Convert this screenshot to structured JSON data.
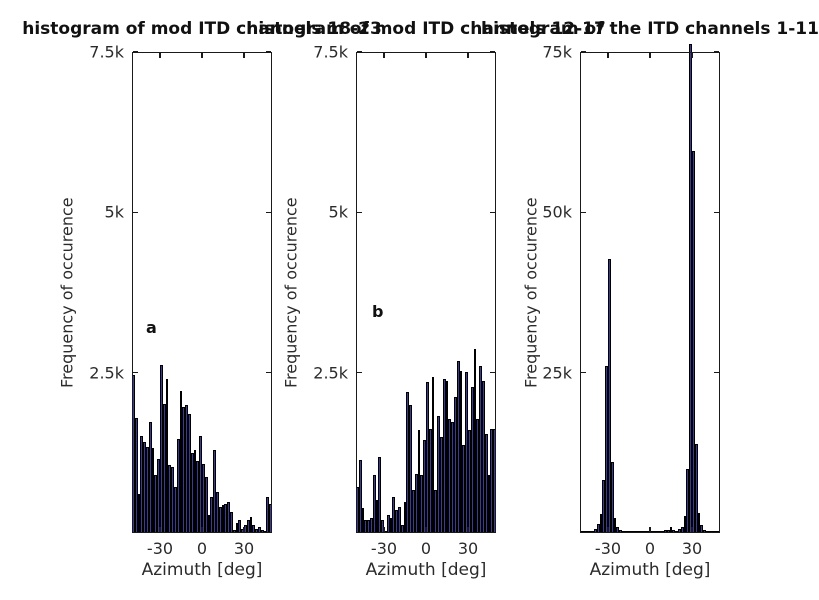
{
  "figure": {
    "background": "#ffffff",
    "bar_fill": "#3B3B8F",
    "bar_edge": "#000000",
    "axis_color": "#1a1a1a",
    "text_color": "#2b2b2b",
    "title_color": "#111111"
  },
  "chart_data": [
    {
      "type": "bar",
      "title": "histogram of mod ITD channels 18-23",
      "panel_label": "a",
      "xlabel": "Azimuth [deg]",
      "ylabel": "Frequency of occurence",
      "xlim": [
        -50,
        50
      ],
      "ylim": [
        0,
        7500
      ],
      "grid": false,
      "legend": "none",
      "xticks": [
        {
          "value": -30,
          "label": "-30"
        },
        {
          "value": 0,
          "label": "0"
        },
        {
          "value": 30,
          "label": "30"
        }
      ],
      "yticks": [
        {
          "value": 2500,
          "label": "2.5k"
        },
        {
          "value": 5000,
          "label": "5k"
        },
        {
          "value": 7500,
          "label": "7.5k"
        }
      ],
      "bin_width": 2,
      "bin_start": -50,
      "values": [
        2470,
        1795,
        615,
        1520,
        1420,
        1340,
        1730,
        1330,
        900,
        1160,
        2615,
        2010,
        2400,
        1055,
        1030,
        720,
        1470,
        2220,
        1960,
        1990,
        1860,
        1240,
        1300,
        1130,
        1510,
        1080,
        870,
        280,
        560,
        1290,
        640,
        410,
        435,
        460,
        490,
        330,
        45,
        150,
        200,
        70,
        125,
        200,
        255,
        125,
        70,
        100,
        45,
        20,
        560,
        450
      ]
    },
    {
      "type": "bar",
      "title": "histogram of mod ITD channels 12-17",
      "panel_label": "b",
      "xlabel": "Azimuth [deg]",
      "ylabel": "Frequency of occurence",
      "xlim": [
        -50,
        50
      ],
      "ylim": [
        0,
        7500
      ],
      "grid": false,
      "legend": "none",
      "xticks": [
        {
          "value": -30,
          "label": "-30"
        },
        {
          "value": 0,
          "label": "0"
        },
        {
          "value": 30,
          "label": "30"
        }
      ],
      "yticks": [
        {
          "value": 2500,
          "label": "2.5k"
        },
        {
          "value": 5000,
          "label": "5k"
        },
        {
          "value": 7500,
          "label": "7.5k"
        }
      ],
      "bin_width": 2,
      "bin_start": -50,
      "values": [
        720,
        1135,
        385,
        200,
        200,
        230,
        900,
        510,
        1185,
        200,
        30,
        280,
        230,
        565,
        355,
        410,
        125,
        490,
        2195,
        1990,
        670,
        925,
        1600,
        900,
        1445,
        2350,
        1625,
        2430,
        670,
        1830,
        1495,
        2400,
        2375,
        1780,
        1730,
        2115,
        2685,
        2530,
        1365,
        2505,
        1600,
        2270,
        2870,
        1780,
        2600,
        2375,
        1540,
        900,
        1625,
        1625
      ]
    },
    {
      "type": "bar",
      "title": "histogram of the ITD channels 1-11",
      "panel_label": "",
      "xlabel": "Azimuth [deg]",
      "ylabel": "Frequency of occurence",
      "xlim": [
        -50,
        50
      ],
      "ylim": [
        0,
        75000
      ],
      "grid": false,
      "legend": "none",
      "xticks": [
        {
          "value": -30,
          "label": "-30"
        },
        {
          "value": 0,
          "label": "0"
        },
        {
          "value": 30,
          "label": "30"
        }
      ],
      "yticks": [
        {
          "value": 25000,
          "label": "25k"
        },
        {
          "value": 50000,
          "label": "50k"
        },
        {
          "value": 75000,
          "label": "75k"
        }
      ],
      "bin_width": 2,
      "bin_start": -50,
      "values": [
        120,
        60,
        80,
        250,
        350,
        600,
        1400,
        3000,
        8300,
        26000,
        42700,
        11000,
        2300,
        900,
        400,
        150,
        80,
        50,
        30,
        20,
        20,
        20,
        30,
        40,
        150,
        40,
        20,
        30,
        60,
        250,
        500,
        400,
        900,
        450,
        350,
        600,
        1000,
        2600,
        10000,
        76300,
        59500,
        13900,
        3100,
        1300,
        500,
        200,
        100,
        60,
        40,
        30
      ]
    }
  ]
}
